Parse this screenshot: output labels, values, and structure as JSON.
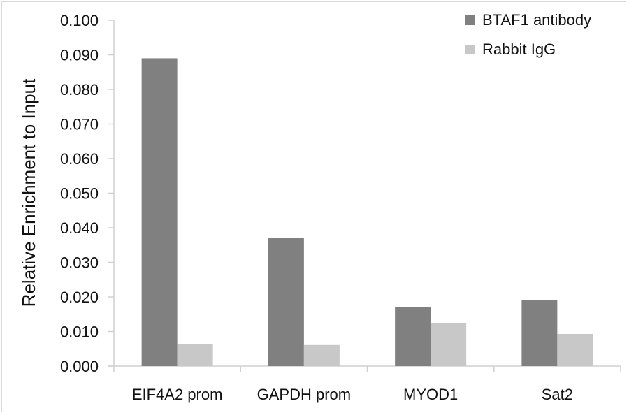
{
  "chart_data": {
    "type": "bar",
    "title": "",
    "xlabel": "",
    "ylabel": "Relative Enrichment to Input",
    "ylim": [
      0,
      0.1
    ],
    "yticks": [
      "0.000",
      "0.010",
      "0.020",
      "0.030",
      "0.040",
      "0.050",
      "0.060",
      "0.070",
      "0.080",
      "0.090",
      "0.100"
    ],
    "categories": [
      "EIF4A2 prom",
      "GAPDH prom",
      "MYOD1",
      "Sat2"
    ],
    "series": [
      {
        "name": "BTAF1 antibody",
        "color": "#808080",
        "values": [
          0.089,
          0.037,
          0.017,
          0.019
        ]
      },
      {
        "name": "Rabbit IgG",
        "color": "#c8c8c8",
        "values": [
          0.0063,
          0.0061,
          0.0125,
          0.0093
        ]
      }
    ],
    "grid": false,
    "legend_position": "top-right"
  }
}
